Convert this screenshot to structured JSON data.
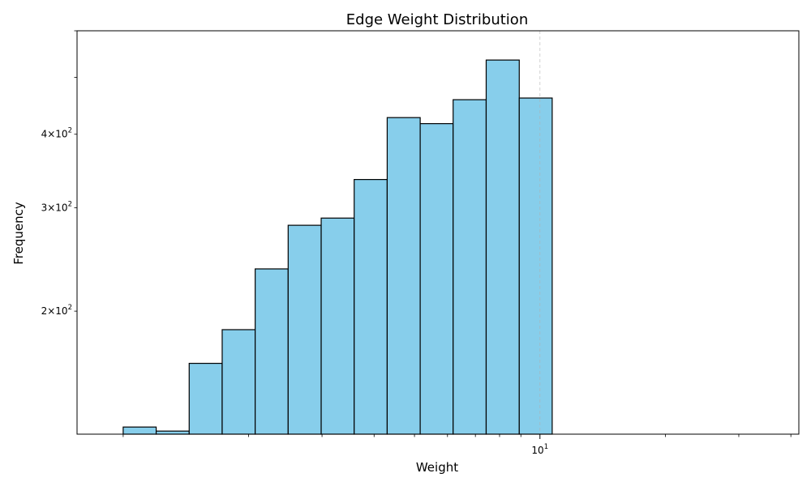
{
  "chart_data": {
    "type": "bar",
    "title": "Edge Weight Distribution",
    "xlabel": "Weight",
    "ylabel": "Frequency",
    "x_scale": "log",
    "y_scale": "log",
    "xlim": [
      0.775,
      41.8
    ],
    "ylim": [
      123.5,
      600
    ],
    "grid": "x-major",
    "color": "#87CEEB",
    "edgecolor": "#000000",
    "bins": [
      {
        "left": 1.0,
        "right": 1.2,
        "value": 127
      },
      {
        "left": 1.2,
        "right": 1.44,
        "value": 125
      },
      {
        "left": 1.44,
        "right": 1.728,
        "value": 163
      },
      {
        "left": 1.728,
        "right": 2.0736,
        "value": 186
      },
      {
        "left": 2.0736,
        "right": 2.488,
        "value": 236
      },
      {
        "left": 2.488,
        "right": 2.986,
        "value": 280
      },
      {
        "left": 2.986,
        "right": 3.583,
        "value": 288
      },
      {
        "left": 3.583,
        "right": 4.3,
        "value": 335
      },
      {
        "left": 4.3,
        "right": 5.16,
        "value": 427
      },
      {
        "left": 5.16,
        "right": 6.19,
        "value": 417
      },
      {
        "left": 6.19,
        "right": 7.43,
        "value": 458
      },
      {
        "left": 7.43,
        "right": 8.92,
        "value": 535
      },
      {
        "left": 8.92,
        "right": 10.7,
        "value": 461
      }
    ],
    "y_ticks": [
      {
        "value": 200,
        "base": "2×10",
        "exp": "2"
      },
      {
        "value": 300,
        "base": "3×10",
        "exp": "2"
      },
      {
        "value": 400,
        "base": "4×10",
        "exp": "2"
      }
    ],
    "y_minor_ticks": [
      500,
      600
    ],
    "x_ticks": [
      {
        "value": 10,
        "base": "10",
        "exp": "1"
      }
    ],
    "x_minor_ticks": [
      1,
      2,
      3,
      4,
      5,
      6,
      7,
      8,
      9,
      20,
      30,
      40
    ]
  }
}
